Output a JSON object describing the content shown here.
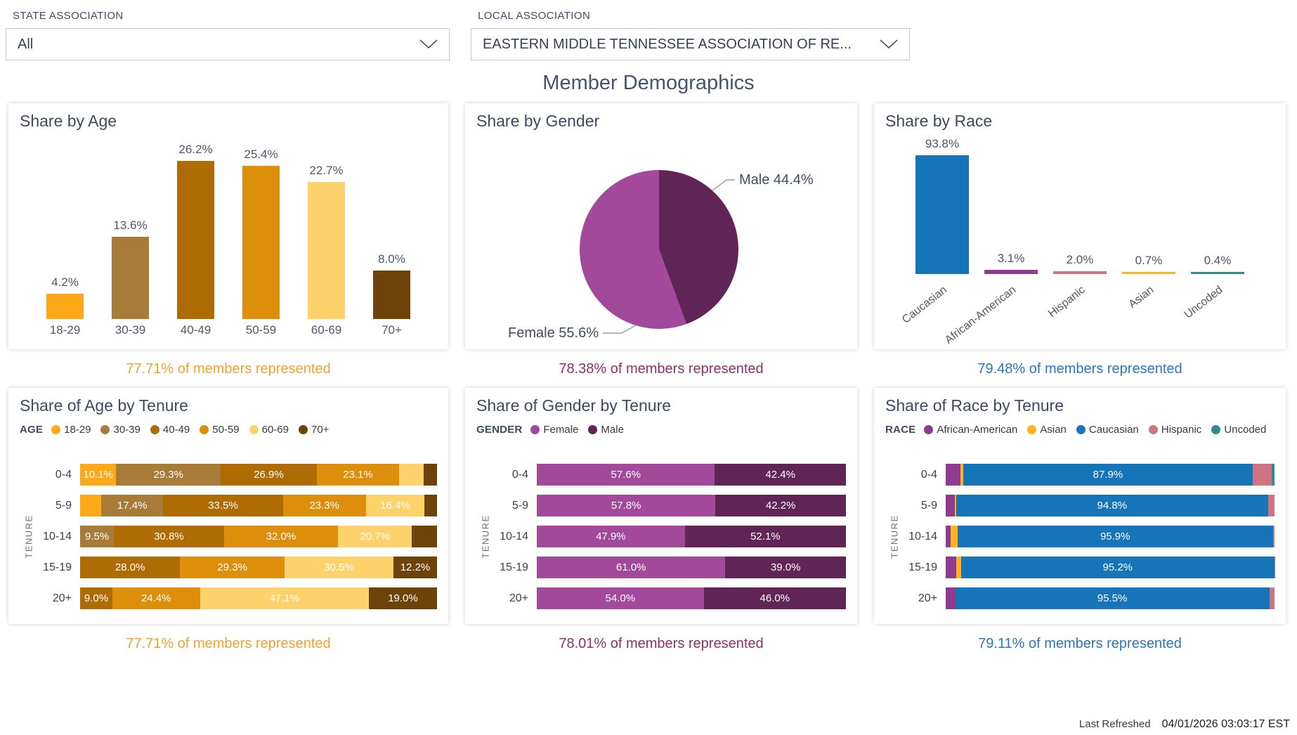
{
  "filters": {
    "state": {
      "label": "STATE ASSOCIATION",
      "value": "All"
    },
    "local": {
      "label": "LOCAL ASSOCIATION",
      "value": "EASTERN MIDDLE TENNESSEE ASSOCIATION OF RE..."
    }
  },
  "page_title": "Member Demographics",
  "cards": [
    {
      "title": "Share by Age",
      "footer": {
        "text": "77.71% of members represented",
        "color": "#F2A22C"
      }
    },
    {
      "title": "Share by Gender",
      "footer": {
        "text": "78.38% of members represented",
        "color": "#8E2F6F"
      }
    },
    {
      "title": "Share by Race",
      "footer": {
        "text": "79.48% of members represented",
        "color": "#2C77BC"
      }
    },
    {
      "title": "Share of Age by Tenure",
      "footer": {
        "text": "77.71% of members represented",
        "color": "#F2A22C"
      }
    },
    {
      "title": "Share of Gender by Tenure",
      "footer": {
        "text": "78.01% of members represented",
        "color": "#8E2F6F"
      }
    },
    {
      "title": "Share of Race by Tenure",
      "footer": {
        "text": "79.11% of members represented",
        "color": "#2C77BC"
      }
    }
  ],
  "chart_data": [
    {
      "type": "bar",
      "title": "Share by Age",
      "categories": [
        "18-29",
        "30-39",
        "40-49",
        "50-59",
        "60-69",
        "70+"
      ],
      "values": [
        4.2,
        13.6,
        26.2,
        25.4,
        22.7,
        8.0
      ],
      "labels": [
        "4.2%",
        "13.6%",
        "26.2%",
        "25.4%",
        "22.7%",
        "8.0%"
      ],
      "colors": [
        "#FFA919",
        "#A87B38",
        "#B06C04",
        "#DD8E0B",
        "#FDD26A",
        "#6D430A"
      ],
      "ylim": [
        0,
        30
      ],
      "grid": false,
      "value_labels_above": true
    },
    {
      "type": "pie",
      "title": "Share by Gender",
      "slices": [
        {
          "name": "Male",
          "value": 44.4,
          "label": "Male 44.4%",
          "color": "#612457"
        },
        {
          "name": "Female",
          "value": 55.6,
          "label": "Female 55.6%",
          "color": "#A3499C"
        }
      ],
      "start_angle": "12-oclock",
      "direction": "clockwise"
    },
    {
      "type": "bar",
      "title": "Share by Race",
      "categories": [
        "Caucasian",
        "African-American",
        "Hispanic",
        "Asian",
        "Uncoded"
      ],
      "values": [
        93.8,
        3.1,
        2.0,
        0.7,
        0.4
      ],
      "labels": [
        "93.8%",
        "3.1%",
        "2.0%",
        "0.7%",
        "0.4%"
      ],
      "colors": [
        "#1674B9",
        "#8F3B8F",
        "#CE7382",
        "#FFB31A",
        "#2E8B8E"
      ],
      "ylim": [
        0,
        100
      ],
      "grid": false,
      "rotated_labels": true,
      "value_labels_above": true
    },
    {
      "type": "stacked-bar-h",
      "title": "Share of Age by Tenure",
      "legend_title": "AGE",
      "axis_label": "TENURE",
      "series": [
        {
          "name": "18-29",
          "color": "#FFA919"
        },
        {
          "name": "30-39",
          "color": "#A87B38"
        },
        {
          "name": "40-49",
          "color": "#B06C04"
        },
        {
          "name": "50-59",
          "color": "#DD8E0B"
        },
        {
          "name": "60-69",
          "color": "#FDD26A"
        },
        {
          "name": "70+",
          "color": "#6D430A"
        }
      ],
      "rows": [
        {
          "name": "0-4",
          "segs": [
            [
              0,
              10.1,
              "10.1%"
            ],
            [
              1,
              29.3,
              "29.3%"
            ],
            [
              2,
              26.9,
              "26.9%"
            ],
            [
              3,
              23.1,
              "23.1%"
            ],
            [
              4,
              6.8,
              null
            ],
            [
              5,
              3.8,
              null
            ]
          ]
        },
        {
          "name": "5-9",
          "segs": [
            [
              0,
              5.9,
              null
            ],
            [
              1,
              17.4,
              "17.4%"
            ],
            [
              2,
              33.5,
              "33.5%"
            ],
            [
              3,
              23.3,
              "23.3%"
            ],
            [
              4,
              16.4,
              "16.4%"
            ],
            [
              5,
              3.5,
              null
            ]
          ]
        },
        {
          "name": "10-14",
          "segs": [
            [
              1,
              9.5,
              "9.5%"
            ],
            [
              2,
              30.8,
              "30.8%"
            ],
            [
              3,
              32.0,
              "32.0%"
            ],
            [
              4,
              20.7,
              "20.7%"
            ],
            [
              5,
              7.0,
              null
            ]
          ]
        },
        {
          "name": "15-19",
          "segs": [
            [
              2,
              28.0,
              "28.0%"
            ],
            [
              3,
              29.3,
              "29.3%"
            ],
            [
              4,
              30.5,
              "30.5%"
            ],
            [
              5,
              12.2,
              "12.2%"
            ]
          ]
        },
        {
          "name": "20+",
          "segs": [
            [
              2,
              9.0,
              "9.0%"
            ],
            [
              3,
              24.4,
              "24.4%"
            ],
            [
              4,
              47.1,
              "47.1%"
            ],
            [
              5,
              19.0,
              "19.0%"
            ]
          ]
        }
      ]
    },
    {
      "type": "stacked-bar-h",
      "title": "Share of Gender by Tenure",
      "legend_title": "GENDER",
      "axis_label": "TENURE",
      "series": [
        {
          "name": "Female",
          "color": "#A3499C"
        },
        {
          "name": "Male",
          "color": "#612457"
        }
      ],
      "rows": [
        {
          "name": "0-4",
          "segs": [
            [
              0,
              57.6,
              "57.6%"
            ],
            [
              1,
              42.4,
              "42.4%"
            ]
          ]
        },
        {
          "name": "5-9",
          "segs": [
            [
              0,
              57.8,
              "57.8%"
            ],
            [
              1,
              42.2,
              "42.2%"
            ]
          ]
        },
        {
          "name": "10-14",
          "segs": [
            [
              0,
              47.9,
              "47.9%"
            ],
            [
              1,
              52.1,
              "52.1%"
            ]
          ]
        },
        {
          "name": "15-19",
          "segs": [
            [
              0,
              61.0,
              "61.0%"
            ],
            [
              1,
              39.0,
              "39.0%"
            ]
          ]
        },
        {
          "name": "20+",
          "segs": [
            [
              0,
              54.0,
              "54.0%"
            ],
            [
              1,
              46.0,
              "46.0%"
            ]
          ]
        }
      ]
    },
    {
      "type": "stacked-bar-h",
      "title": "Share of Race by Tenure",
      "legend_title": "RACE",
      "axis_label": "TENURE",
      "series": [
        {
          "name": "African-American",
          "color": "#8F3B8F"
        },
        {
          "name": "Asian",
          "color": "#FFB31A"
        },
        {
          "name": "Caucasian",
          "color": "#1674B9"
        },
        {
          "name": "Hispanic",
          "color": "#CE7382"
        },
        {
          "name": "Uncoded",
          "color": "#2E8B8E"
        }
      ],
      "rows": [
        {
          "name": "0-4",
          "segs": [
            [
              0,
              4.4,
              null
            ],
            [
              1,
              1.0,
              null
            ],
            [
              2,
              87.9,
              "87.9%"
            ],
            [
              3,
              5.9,
              null
            ],
            [
              4,
              0.8,
              null
            ]
          ]
        },
        {
          "name": "5-9",
          "segs": [
            [
              0,
              2.8,
              null
            ],
            [
              1,
              0.4,
              null
            ],
            [
              2,
              94.8,
              "94.8%"
            ],
            [
              3,
              2.0,
              null
            ]
          ]
        },
        {
          "name": "10-14",
          "segs": [
            [
              0,
              1.4,
              null
            ],
            [
              1,
              2.2,
              null
            ],
            [
              2,
              95.9,
              "95.9%"
            ],
            [
              3,
              0.5,
              null
            ]
          ]
        },
        {
          "name": "15-19",
          "segs": [
            [
              0,
              3.3,
              null
            ],
            [
              1,
              1.4,
              null
            ],
            [
              2,
              95.2,
              "95.2%"
            ],
            [
              3,
              0.1,
              null
            ]
          ]
        },
        {
          "name": "20+",
          "segs": [
            [
              0,
              2.9,
              null
            ],
            [
              2,
              95.5,
              "95.5%"
            ],
            [
              3,
              1.6,
              null
            ]
          ]
        }
      ]
    }
  ],
  "last_refreshed": {
    "label": "Last Refreshed",
    "value": "04/01/2026 03:03:17 EST"
  }
}
